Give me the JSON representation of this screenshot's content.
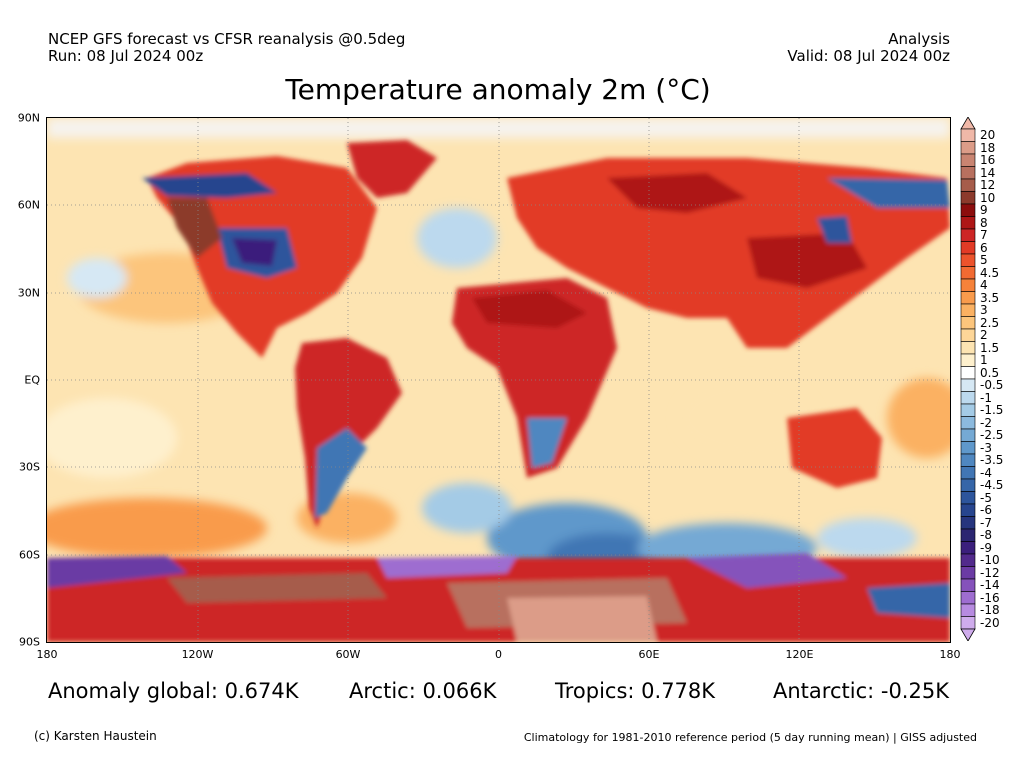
{
  "header": {
    "model_line": "NCEP GFS forecast vs CFSR reanalysis @0.5deg",
    "run_line": "Run: 08 Jul 2024 00z",
    "analysis_label": "Analysis",
    "valid_line": "Valid: 08 Jul 2024 00z"
  },
  "title": "Temperature anomaly 2m (°C)",
  "map": {
    "lat_labels": [
      "90N",
      "60N",
      "30N",
      "EQ",
      "30S",
      "60S",
      "90S"
    ],
    "lon_labels": [
      "180",
      "120W",
      "60W",
      "0",
      "60E",
      "120E",
      "180"
    ]
  },
  "colorbar": {
    "levels": [
      "20",
      "18",
      "16",
      "14",
      "12",
      "10",
      "9",
      "8",
      "7",
      "6",
      "5",
      "4.5",
      "4",
      "3.5",
      "3",
      "2.5",
      "2",
      "1.5",
      "1",
      "0.5",
      "-0.5",
      "-1",
      "-1.5",
      "-2",
      "-2.5",
      "-3",
      "-3.5",
      "-4",
      "-4.5",
      "-5",
      "-6",
      "-7",
      "-8",
      "-9",
      "-10",
      "-12",
      "-14",
      "-16",
      "-18",
      "-20"
    ],
    "colors": [
      "#f0b8a8",
      "#dc9c88",
      "#c98471",
      "#b8705f",
      "#a65c4b",
      "#8c3a2c",
      "#8c0d0d",
      "#ae1616",
      "#cd2626",
      "#e23a26",
      "#ec532c",
      "#f26a32",
      "#f6823a",
      "#f99b4c",
      "#fbb162",
      "#fcc57c",
      "#fdd698",
      "#fde4b2",
      "#fef0cd",
      "#ffffff",
      "#d6e8f4",
      "#bcd9ee",
      "#a4cbe6",
      "#8cbade",
      "#75a9d4",
      "#5f98cb",
      "#4f87c0",
      "#4176b4",
      "#3666a8",
      "#2d559c",
      "#27458e",
      "#26357e",
      "#2b2671",
      "#3b1f7c",
      "#522a8c",
      "#6b3ba4",
      "#8552bb",
      "#9e6dd0",
      "#b78be0",
      "#cfacec"
    ]
  },
  "stats": {
    "global": "Anomaly global: 0.674K",
    "arctic": "Arctic: 0.066K",
    "tropics": "Tropics: 0.778K",
    "antarctic": "Antarctic: -0.25K"
  },
  "footer": {
    "credit": "(c) Karsten Haustein",
    "climatology": "Climatology for 1981-2010 reference period (5 day running mean) | GISS adjusted"
  }
}
